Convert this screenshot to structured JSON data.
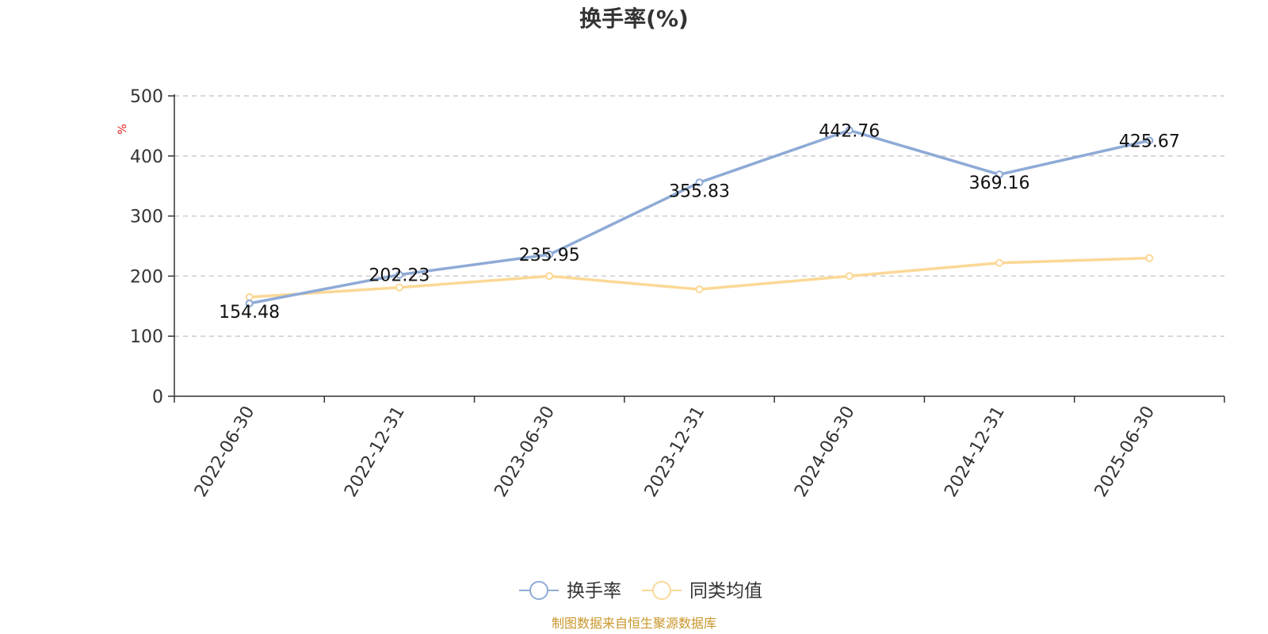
{
  "chart_data": {
    "type": "line",
    "title": "换手率(%)",
    "ylabel": "%",
    "xlabel": "",
    "categories": [
      "2022-06-30",
      "2022-12-31",
      "2023-06-30",
      "2023-12-31",
      "2024-06-30",
      "2024-12-31",
      "2025-06-30"
    ],
    "ylim": [
      0,
      500
    ],
    "yticks": [
      0,
      100,
      200,
      300,
      400,
      500
    ],
    "grid": "horizontal-dashed",
    "legend_position": "bottom-center",
    "series": [
      {
        "name": "换手率",
        "color": "#8eaad6",
        "values": [
          154.48,
          202.23,
          235.95,
          355.83,
          442.76,
          369.16,
          425.67
        ],
        "data_labels": [
          "154.48",
          "202.23",
          "235.95",
          "355.83",
          "442.76",
          "369.16",
          "425.67"
        ]
      },
      {
        "name": "同类均值",
        "color": "#fbd896",
        "values": [
          165,
          181,
          200,
          178,
          200,
          222,
          230
        ]
      }
    ]
  },
  "footer": {
    "source": "制图数据来自恒生聚源数据库"
  }
}
